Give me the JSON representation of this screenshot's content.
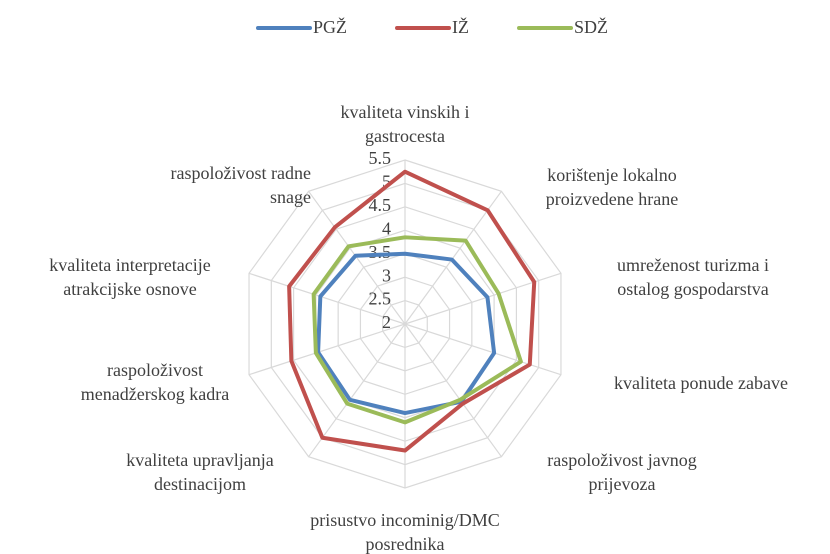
{
  "chart_data": {
    "type": "radar",
    "categories": [
      "kvaliteta vinskih i gastrocesta",
      "korištenje lokalno proizvedene hrane",
      "umreženost turizma i ostalog gospodarstva",
      "kvaliteta ponude zabave",
      "raspoloživost javnog prijevoza",
      "prisustvo incominig/DMC posrednika",
      "kvaliteta upravljanja destinacijom",
      "raspoloživost menadžerskog kadra",
      "kvaliteta interpretacije atrakcijske osnove",
      "raspoloživost radne snage"
    ],
    "series": [
      {
        "name": "PGŽ",
        "color": "#4f81bd",
        "values": [
          3.5,
          3.7,
          3.85,
          4.0,
          4.05,
          3.9,
          4.0,
          3.95,
          3.9,
          3.8
        ]
      },
      {
        "name": "IŽ",
        "color": "#c0504d",
        "values": [
          5.25,
          5.0,
          4.9,
          4.8,
          4.1,
          4.7,
          5.0,
          4.55,
          4.6,
          4.55
        ]
      },
      {
        "name": "SDŽ",
        "color": "#9bbb59",
        "values": [
          3.85,
          4.2,
          4.1,
          4.6,
          4.0,
          4.1,
          4.1,
          4.0,
          4.05,
          4.05
        ]
      }
    ],
    "ylim": [
      2,
      5.5
    ],
    "yticks": [
      2,
      2.5,
      3,
      3.5,
      4,
      4.5,
      5,
      5.5
    ],
    "grid": true,
    "legend": "top"
  }
}
